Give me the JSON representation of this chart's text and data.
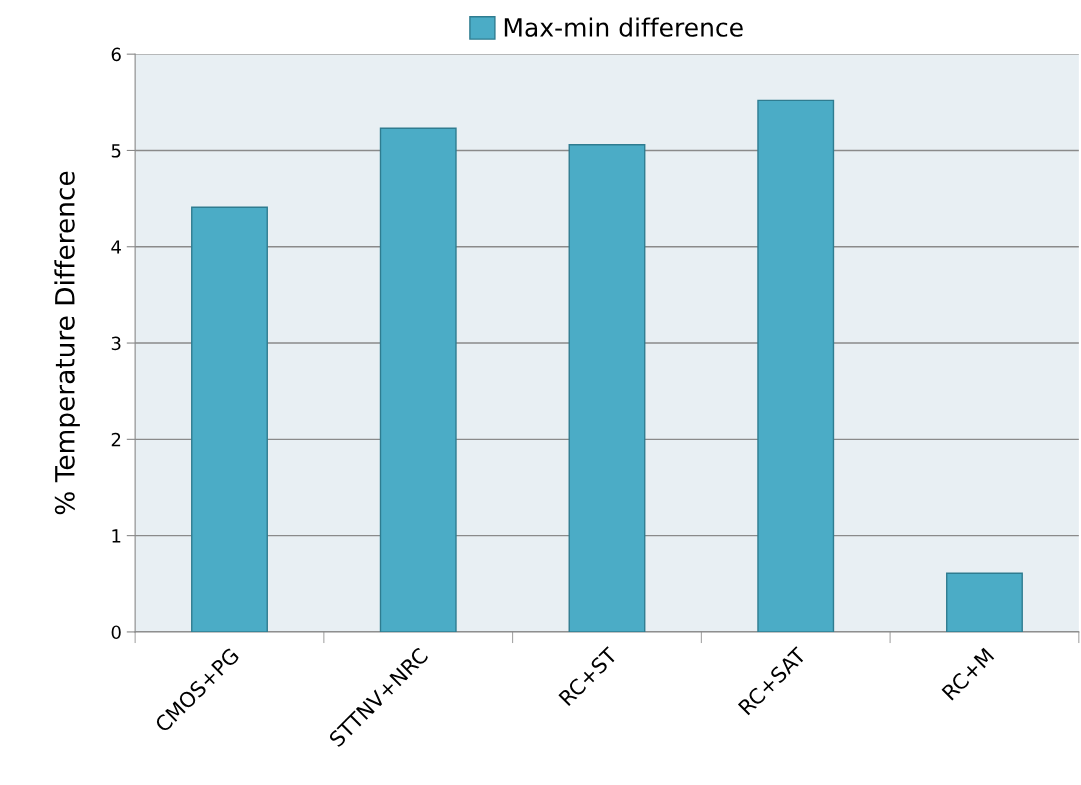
{
  "chart_data": {
    "type": "bar",
    "ylabel": "% Temperature Difference",
    "categories": [
      "CMOS+PG",
      "STTNV+NRC",
      "RC+ST",
      "RC+SAT",
      "RC+M"
    ],
    "series": [
      {
        "name": "Max-min difference",
        "color": "#4bacc6",
        "values": [
          4.41,
          5.23,
          5.06,
          5.52,
          0.61
        ]
      }
    ],
    "ylim": [
      0,
      6
    ],
    "yticks": [
      0,
      1,
      2,
      3,
      4,
      5,
      6
    ],
    "grid": "y",
    "legend": "top"
  }
}
